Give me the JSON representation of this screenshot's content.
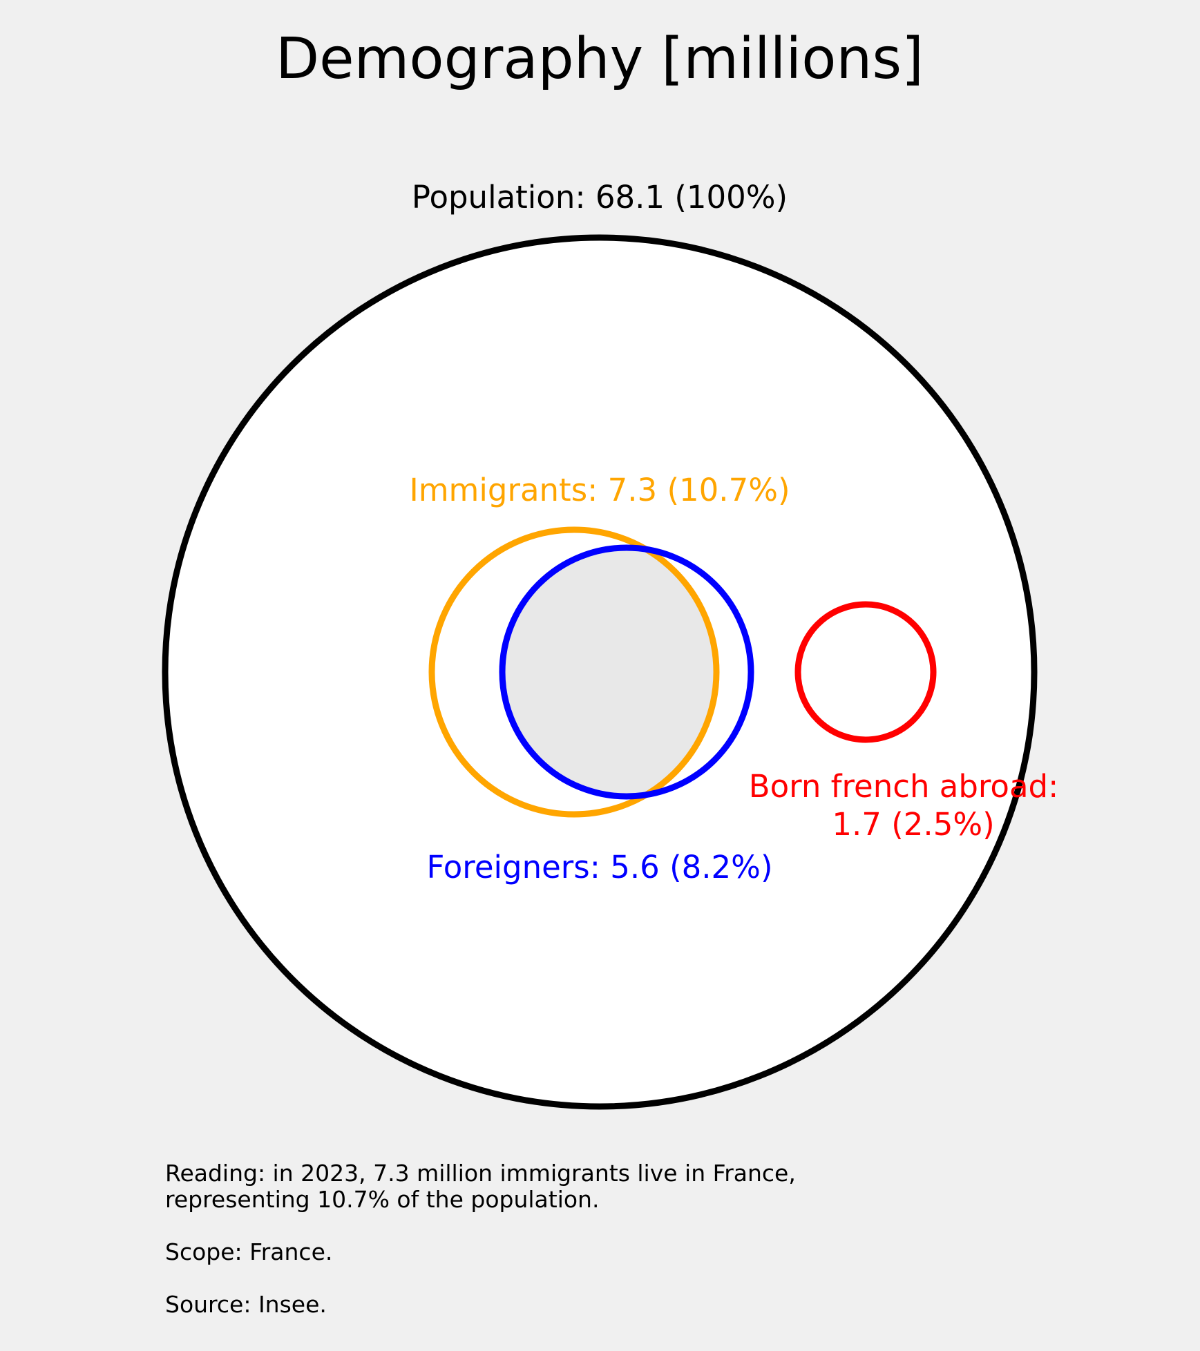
{
  "title": "Demography [millions]",
  "colors": {
    "background": "#f0f0f0",
    "population": "#000000",
    "immigrants": "#ffa500",
    "foreigners": "#0000ff",
    "born_french_abroad": "#ff0000",
    "overlap_fill": "#e8e8e8",
    "population_fill": "#ffffff"
  },
  "groups": {
    "population": {
      "label": "Population: 68.1 (100%)",
      "value": 68.1,
      "percent": 100
    },
    "immigrants": {
      "label": "Immigrants: 7.3 (10.7%)",
      "value": 7.3,
      "percent": 10.7
    },
    "foreigners": {
      "label": "Foreigners: 5.6 (8.2%)",
      "value": 5.6,
      "percent": 8.2
    },
    "born_french_abroad": {
      "label_line1": "Born french abroad:",
      "label_line2": "1.7 (2.5%)",
      "value": 1.7,
      "percent": 2.5
    }
  },
  "notes": {
    "reading_line1": "Reading: in 2023, 7.3 million immigrants live in France,",
    "reading_line2": "representing 10.7% of the population.",
    "scope": "Scope: France.",
    "source": "Source: Insee."
  }
}
